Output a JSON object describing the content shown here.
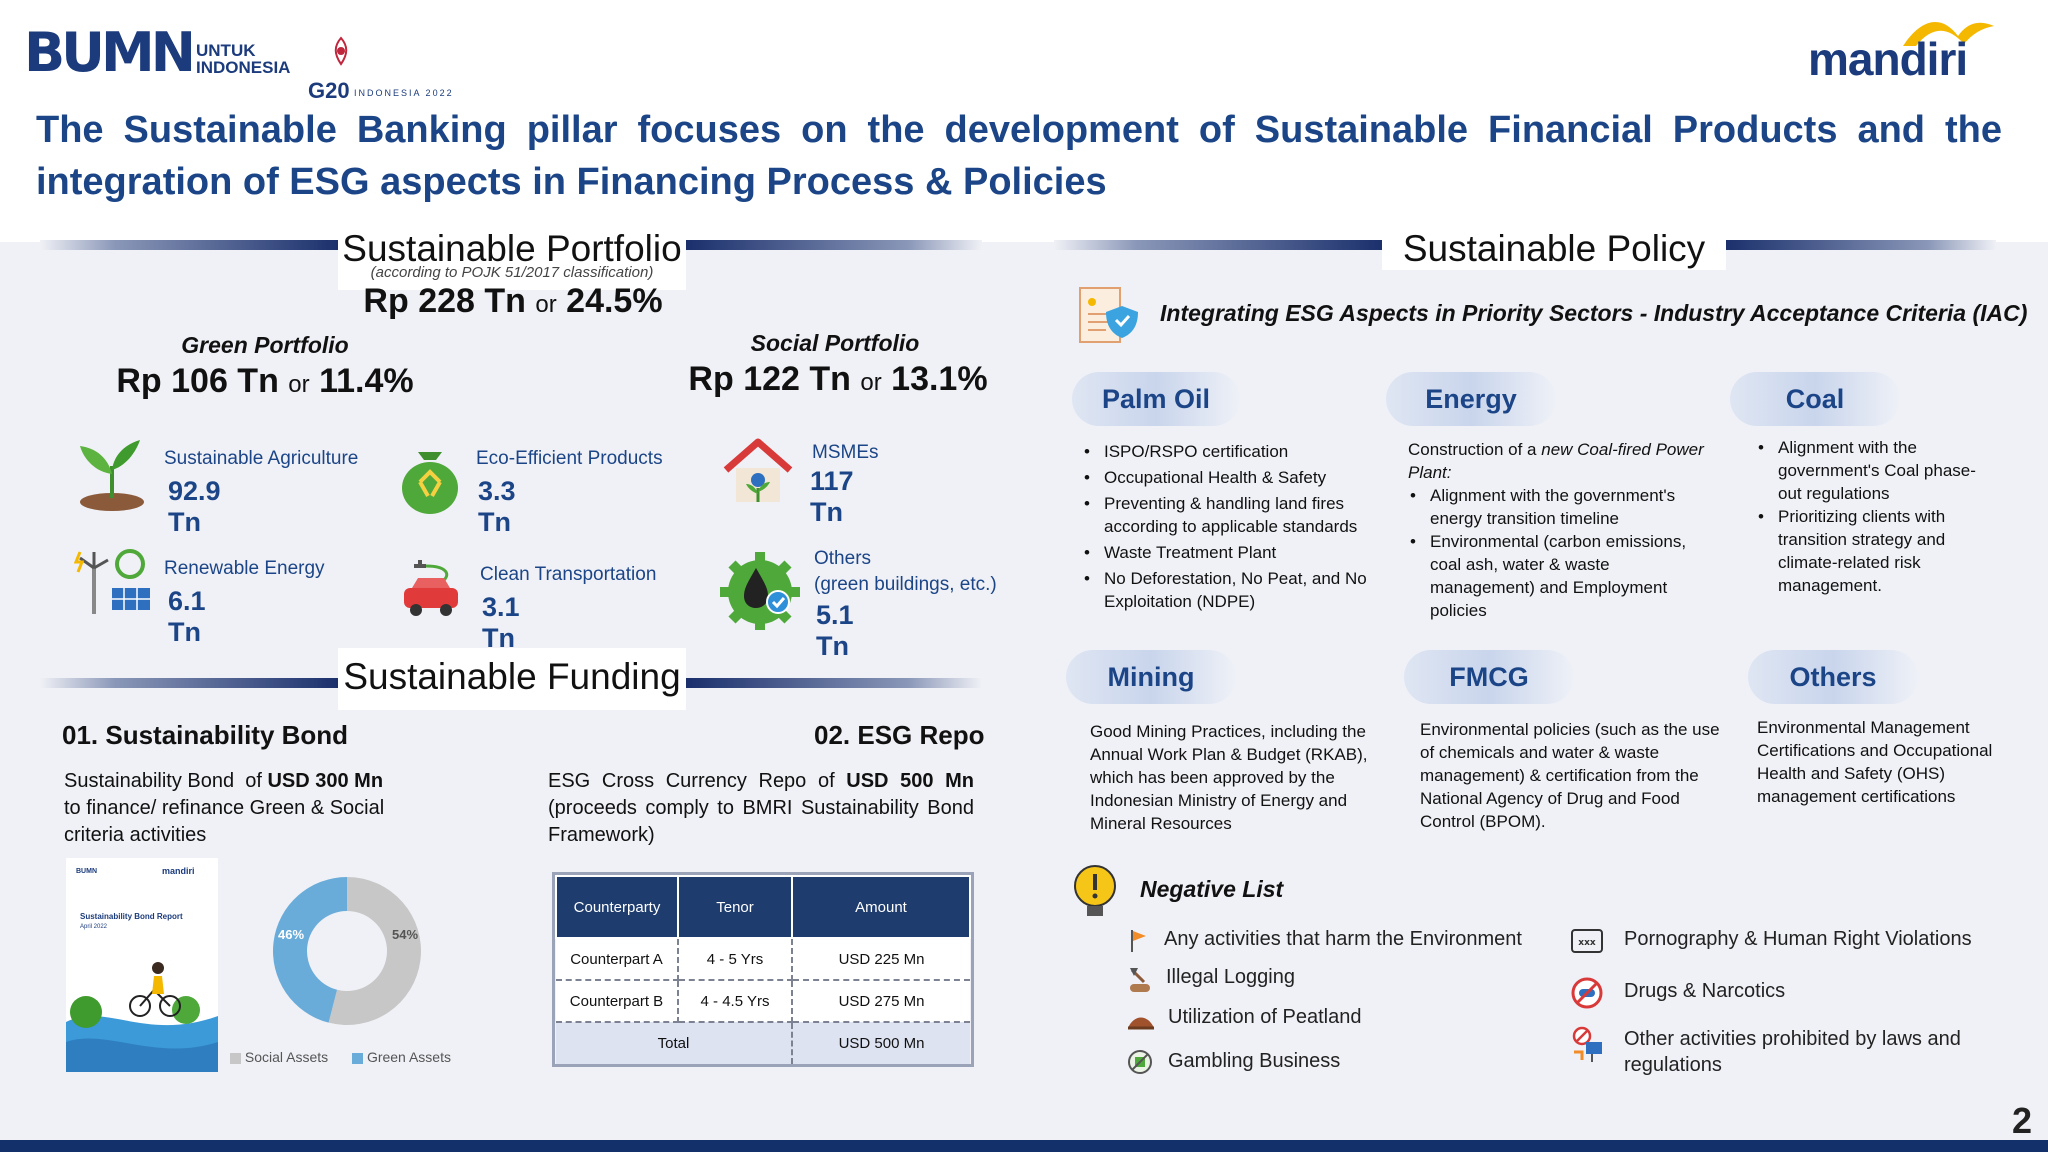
{
  "header": {
    "bumn_logo": "BUMN",
    "bumn_tag_line1": "UNTUK",
    "bumn_tag_line2": "INDONESIA",
    "g20_logo": "G20",
    "g20_tag": "INDONESIA 2022",
    "mandiri_logo": "mandiri",
    "headline": "The Sustainable Banking pillar focuses on the development of Sustainable Financial Products and the integration of ESG aspects in Financing Process & Policies"
  },
  "portfolio": {
    "title": "Sustainable Portfolio",
    "subtitle": "(according to POJK 51/2017 classification)",
    "total_amount": "Rp 228 Tn",
    "total_or": "or",
    "total_pct": "24.5%",
    "green": {
      "label": "Green Portfolio",
      "amount": "Rp 106 Tn",
      "or": "or",
      "pct": "11.4%",
      "items": [
        {
          "label": "Sustainable Agriculture",
          "value": "92.9 Tn",
          "icon": "plant-icon"
        },
        {
          "label": "Eco-Efficient Products",
          "value": "3.3 Tn",
          "icon": "recycle-bag-icon"
        },
        {
          "label": "Renewable Energy",
          "value": "6.1 Tn",
          "icon": "renewable-energy-icon"
        },
        {
          "label": "Clean Transportation",
          "value": "3.1 Tn",
          "icon": "electric-car-icon"
        }
      ]
    },
    "social": {
      "label": "Social Portfolio",
      "amount": "Rp 122 Tn",
      "or": "or",
      "pct": "13.1%",
      "items": [
        {
          "label": "MSMEs",
          "value": "117 Tn",
          "icon": "house-icon"
        },
        {
          "label": "Others",
          "label2": "(green buildings, etc.)",
          "value": "5.1 Tn",
          "icon": "oil-drop-gear-icon"
        }
      ]
    }
  },
  "funding": {
    "title": "Sustainable Funding",
    "bond": {
      "heading": "01. Sustainability Bond",
      "text_a": "Sustainability Bond  of ",
      "text_b": "USD 300 Mn",
      "text_c": "to finance/ refinance Green & Social criteria activities",
      "report_cover_title": "Sustainability Bond Report",
      "report_cover_date": "April 2022",
      "report_cover_logo_left": "BUMN",
      "report_cover_logo_right": "mandiri"
    },
    "repo": {
      "heading": "02. ESG Repo",
      "text_a": "ESG  Cross  Currency  Repo  of  ",
      "text_b": "USD  500  Mn",
      "text_c": "(proceeds comply to BMRI Sustainability Bond Framework)",
      "columns": [
        "Counterparty",
        "Tenor",
        "Amount"
      ],
      "rows": [
        [
          "Counterpart A",
          "4 - 5 Yrs",
          "USD 225 Mn"
        ],
        [
          "Counterpart B",
          "4 - 4.5 Yrs",
          "USD 275 Mn"
        ]
      ],
      "total_label": "Total",
      "total_value": "USD 500 Mn"
    }
  },
  "chart_data": {
    "type": "pie",
    "categories": [
      "Social Assets",
      "Green Assets"
    ],
    "values": [
      54,
      46
    ],
    "labels": [
      "54%",
      "46%"
    ],
    "colors": [
      "#c7c7c7",
      "#6aacd9"
    ],
    "legend": "bottom"
  },
  "policy": {
    "title": "Sustainable Policy",
    "subtitle": "Integrating ESG Aspects in Priority Sectors - Industry Acceptance Criteria (IAC)",
    "sectors": {
      "palm_oil": {
        "name": "Palm Oil",
        "bullets": [
          "ISPO/RSPO certification",
          "Occupational Health & Safety",
          "Preventing & handling land fires according to applicable standards",
          "Waste Treatment Plant",
          "No Deforestation, No Peat, and No Exploitation (NDPE)"
        ]
      },
      "energy": {
        "name": "Energy",
        "intro_a": "Construction of a ",
        "intro_b": "new Coal-fired Power Plant:",
        "bullets": [
          "Alignment with the government's energy transition timeline",
          "Environmental (carbon emissions, coal ash, water & waste management) and Employment policies"
        ]
      },
      "coal": {
        "name": "Coal",
        "bullets": [
          "Alignment with the government's Coal phase-out regulations",
          "Prioritizing clients with transition strategy and climate-related risk management."
        ]
      },
      "mining": {
        "name": "Mining",
        "text": "Good Mining Practices, including the Annual Work Plan & Budget (RKAB), which has been approved by the Indonesian Ministry of Energy and Mineral Resources"
      },
      "fmcg": {
        "name": "FMCG",
        "text": "Environmental policies (such as the use of chemicals and water & waste management) & certification from the National Agency of Drug and Food Control (BPOM)."
      },
      "others": {
        "name": "Others",
        "text": "Environmental Management Certifications and Occupational Health and Safety (OHS) management certifications"
      }
    },
    "negative_list": {
      "title": "Negative List",
      "left": [
        {
          "label": "Any activities that harm the Environment",
          "icon": "flag-icon"
        },
        {
          "label": "Illegal Logging",
          "icon": "axe-log-icon"
        },
        {
          "label": "Utilization of Peatland",
          "icon": "soil-mound-icon"
        },
        {
          "label": "Gambling Business",
          "icon": "no-gambling-icon"
        }
      ],
      "right": [
        {
          "label": "Pornography & Human Right Violations",
          "icon": "xxx-screen-icon"
        },
        {
          "label": "Drugs & Narcotics",
          "icon": "no-drugs-icon"
        },
        {
          "label": "Other activities prohibited by laws and regulations",
          "icon": "prohibited-sign-icon"
        }
      ]
    }
  },
  "page_number": "2"
}
